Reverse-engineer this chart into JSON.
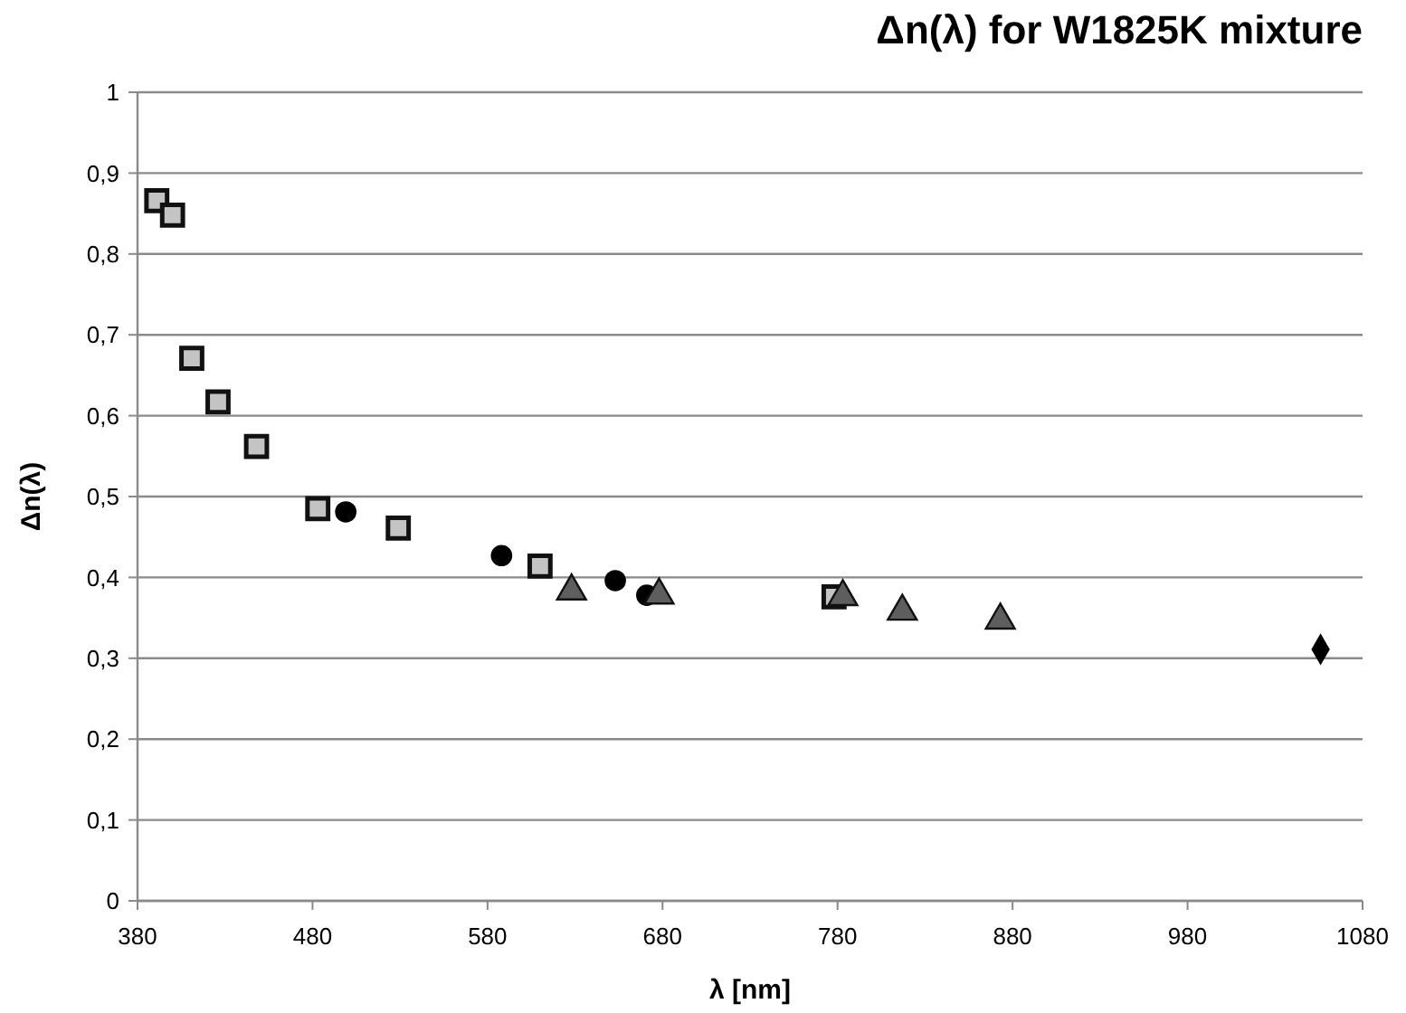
{
  "chart_data": {
    "type": "scatter",
    "title": "Δn(λ) for W1825K mixture",
    "xlabel": "λ [nm]",
    "ylabel": "Δn(λ)",
    "xlim": [
      380,
      1080
    ],
    "xticks": [
      380,
      480,
      580,
      680,
      780,
      880,
      980,
      1080
    ],
    "ylim": [
      0,
      1
    ],
    "yticks": [
      0,
      {
        "value": 0.1,
        "label": "0,1"
      },
      {
        "value": 0.2,
        "label": "0,2"
      },
      {
        "value": 0.3,
        "label": "0,3"
      },
      {
        "value": 0.4,
        "label": "0,4"
      },
      {
        "value": 0.5,
        "label": "0,5"
      },
      {
        "value": 0.6,
        "label": "0,6"
      },
      {
        "value": 0.7,
        "label": "0,7"
      },
      {
        "value": 0.8,
        "label": "0,8"
      },
      {
        "value": 0.9,
        "label": "0,9"
      },
      1
    ],
    "grid": "y",
    "series": [
      {
        "color": "#c4c4c4",
        "marker": "square",
        "x": [
          391,
          400,
          411,
          426,
          448,
          483,
          529,
          610,
          778
        ],
        "values": [
          0.866,
          0.848,
          0.671,
          0.617,
          0.562,
          0.485,
          0.461,
          0.414,
          0.376
        ]
      },
      {
        "color": "#000000",
        "marker": "circle",
        "x": [
          499,
          588,
          653,
          671
        ],
        "values": [
          0.481,
          0.427,
          0.396,
          0.378
        ]
      },
      {
        "color": "#5e5e5e",
        "marker": "triangle",
        "x": [
          628,
          678,
          783,
          817,
          873
        ],
        "values": [
          0.383,
          0.378,
          0.376,
          0.358,
          0.347
        ]
      },
      {
        "color": "#000000",
        "marker": "diamond",
        "x": [
          1056
        ],
        "values": [
          0.311
        ]
      }
    ]
  }
}
